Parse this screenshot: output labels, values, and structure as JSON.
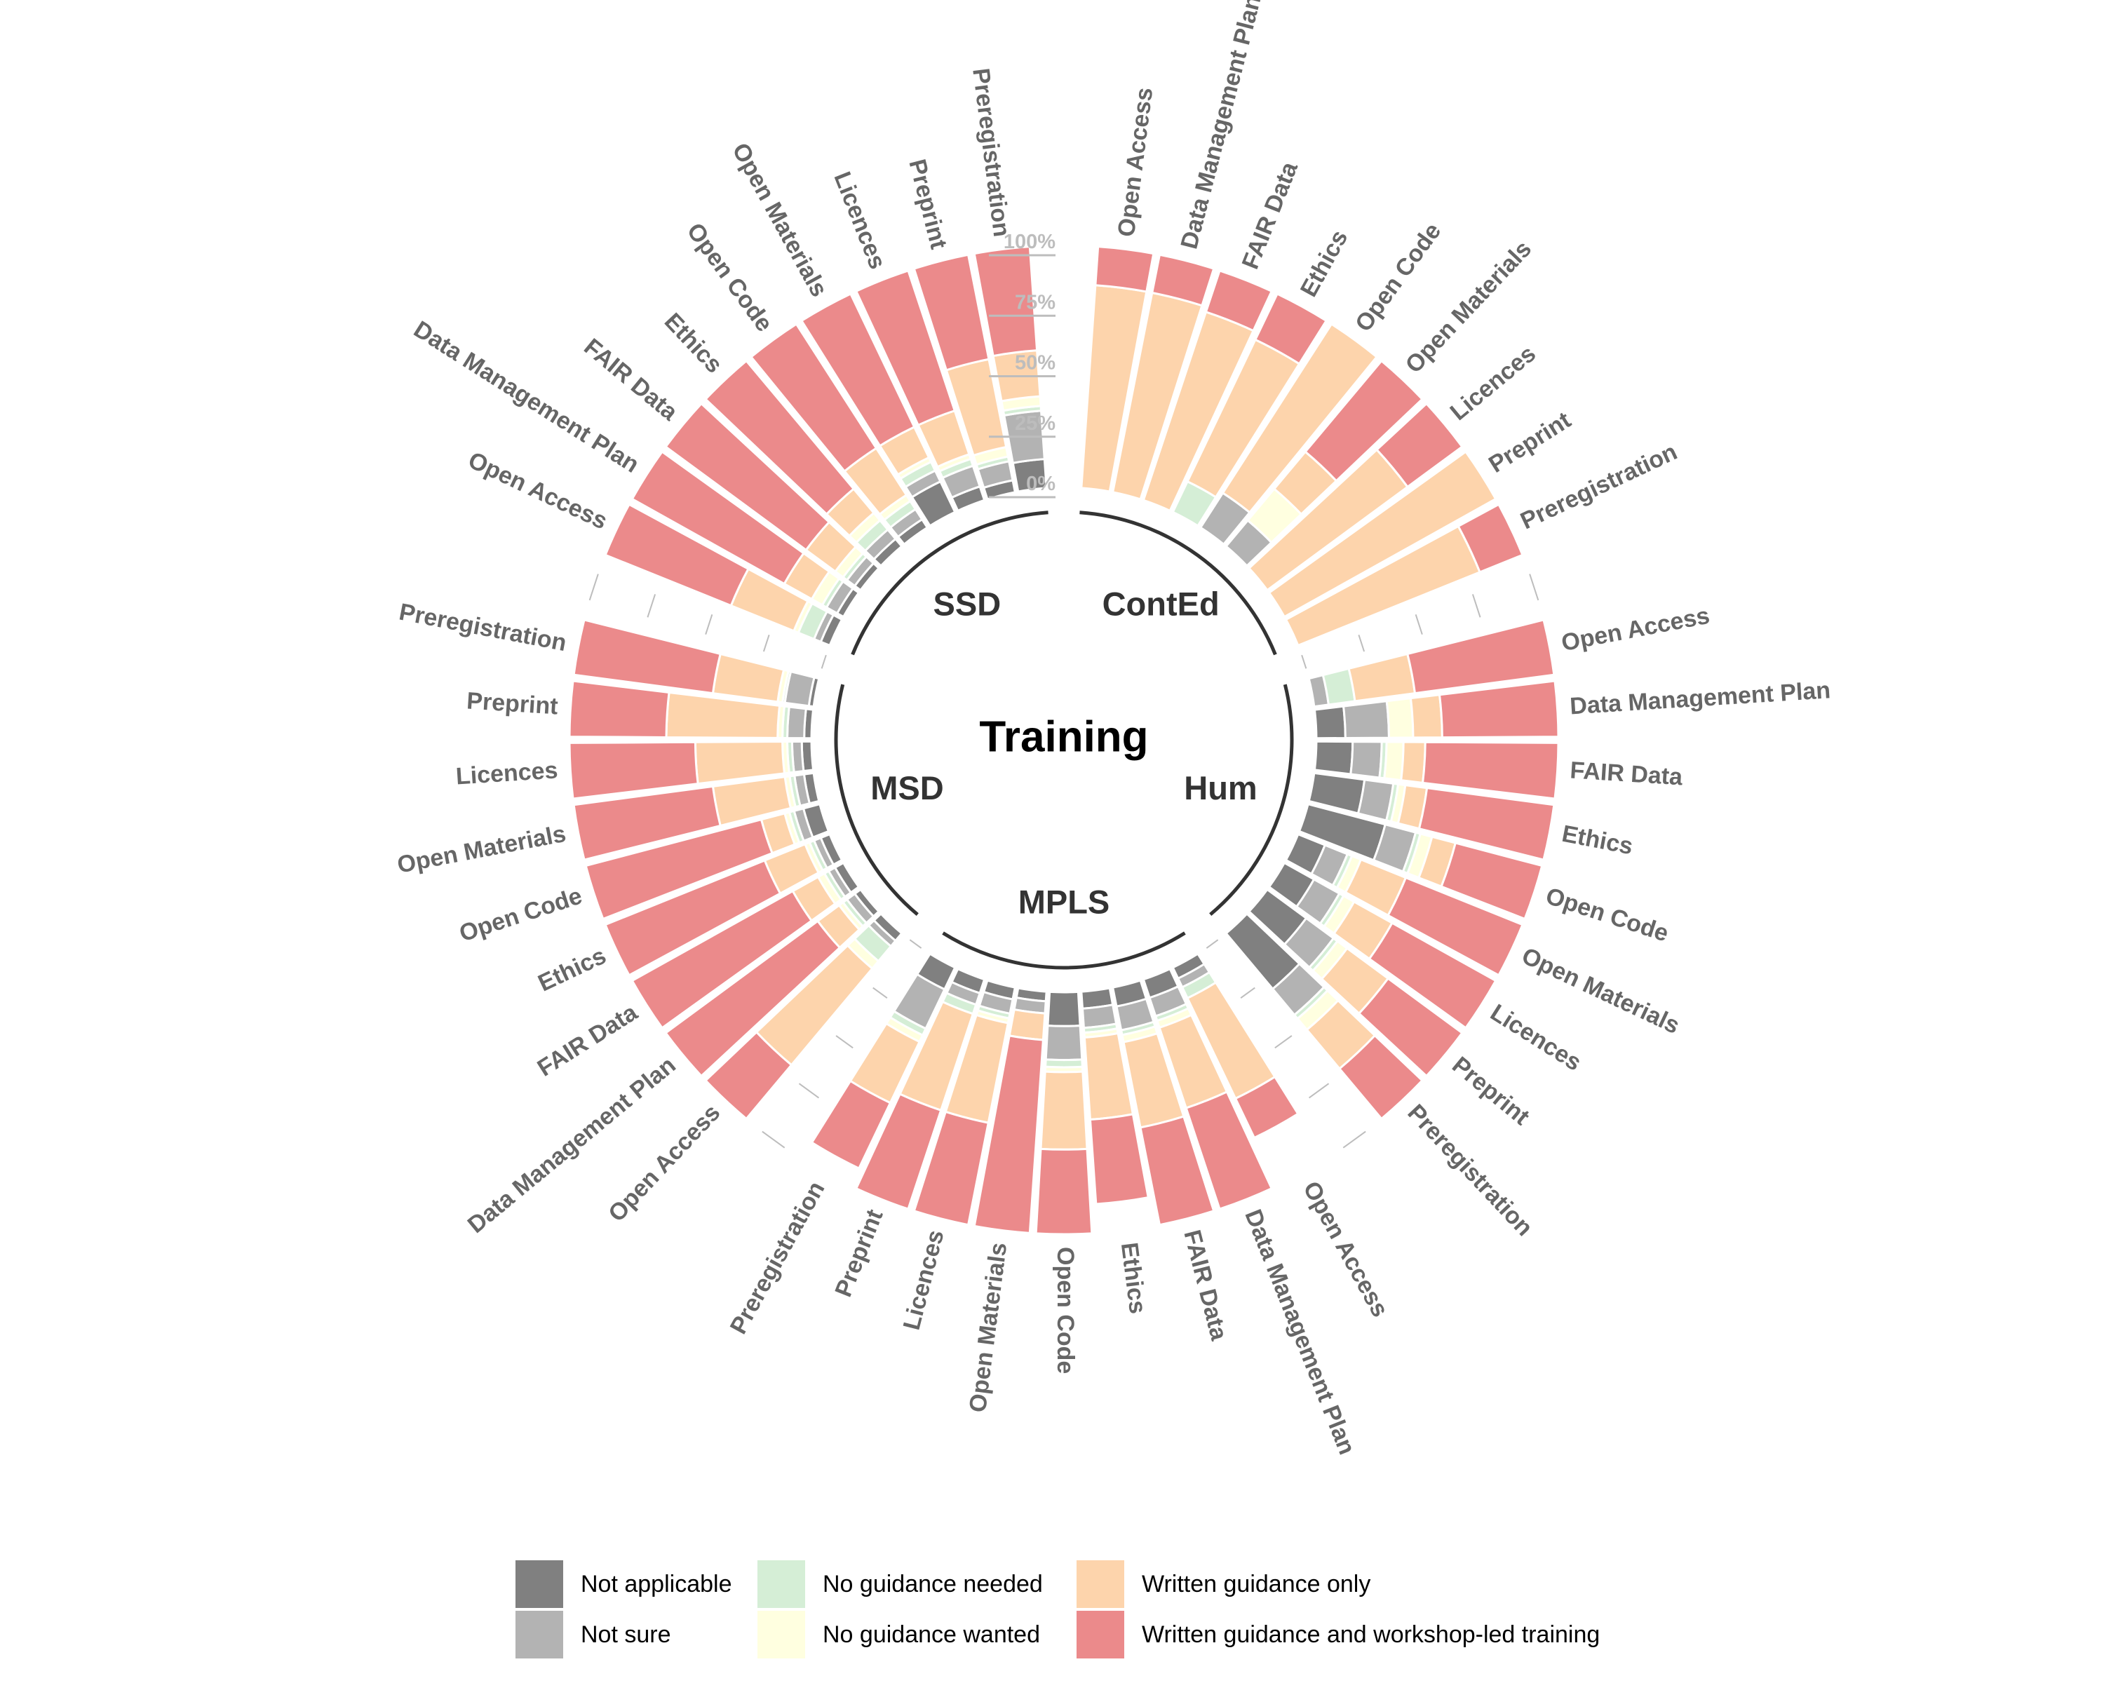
{
  "chart_data": {
    "type": "circular-stacked-bar",
    "title": "Training",
    "yticks": [
      "0%",
      "25%",
      "50%",
      "75%",
      "100%"
    ],
    "legend": [
      {
        "key": "na",
        "label": "Not applicable",
        "color": "#808080"
      },
      {
        "key": "ns",
        "label": "Not sure",
        "color": "#b3b3b3"
      },
      {
        "key": "ngn",
        "label": "No guidance needed",
        "color": "#d5eed6"
      },
      {
        "key": "ngw",
        "label": "No guidance wanted",
        "color": "#ffffe0"
      },
      {
        "key": "wgo",
        "label": "Written guidance only",
        "color": "#fdd4ac"
      },
      {
        "key": "wgt",
        "label": "Written guidance and workshop-led training",
        "color": "#eb8a8b"
      }
    ],
    "categories": [
      "Open Access",
      "Data Management Plan",
      "FAIR Data",
      "Ethics",
      "Open Code",
      "Open Materials",
      "Licences",
      "Preprint",
      "Preregistration"
    ],
    "groups": [
      {
        "name": "ContEd",
        "bars": [
          {
            "na": 0,
            "ns": 0,
            "ngn": 0,
            "ngw": 0,
            "wgo": 0.84,
            "wgt": 0.16
          },
          {
            "na": 0,
            "ns": 0,
            "ngn": 0,
            "ngw": 0,
            "wgo": 0.84,
            "wgt": 0.16
          },
          {
            "na": 0,
            "ns": 0,
            "ngn": 0,
            "ngw": 0,
            "wgo": 0.82,
            "wgt": 0.18
          },
          {
            "na": 0,
            "ns": 0,
            "ngn": 0.14,
            "ngw": 0,
            "wgo": 0.65,
            "wgt": 0.21
          },
          {
            "na": 0,
            "ns": 0.17,
            "ngn": 0,
            "ngw": 0,
            "wgo": 0.83,
            "wgt": 0
          },
          {
            "na": 0,
            "ns": 0.14,
            "ngn": 0,
            "ngw": 0.17,
            "wgo": 0.2,
            "wgt": 0.49
          },
          {
            "na": 0,
            "ns": 0,
            "ngn": 0,
            "ngw": 0,
            "wgo": 0.72,
            "wgt": 0.28
          },
          {
            "na": 0,
            "ns": 0,
            "ngn": 0,
            "ngw": 0,
            "wgo": 1,
            "wgt": 0
          },
          {
            "na": 0,
            "ns": 0,
            "ngn": 0,
            "ngw": 0,
            "wgo": 0.81,
            "wgt": 0.19
          }
        ]
      },
      {
        "name": "Hum",
        "bars": [
          {
            "na": 0,
            "ns": 0.06,
            "ngn": 0.11,
            "ngw": 0,
            "wgo": 0.25,
            "wgt": 0.58
          },
          {
            "na": 0.12,
            "ns": 0.18,
            "ngn": 0,
            "ngw": 0.1,
            "wgo": 0.12,
            "wgt": 0.48
          },
          {
            "na": 0.15,
            "ns": 0.12,
            "ngn": 0.02,
            "ngw": 0.07,
            "wgo": 0.09,
            "wgt": 0.55
          },
          {
            "na": 0.21,
            "ns": 0.12,
            "ngn": 0.02,
            "ngw": 0.03,
            "wgo": 0.09,
            "wgt": 0.53
          },
          {
            "na": 0.33,
            "ns": 0.13,
            "ngn": 0.02,
            "ngw": 0.05,
            "wgo": 0.1,
            "wgt": 0.37
          },
          {
            "na": 0.12,
            "ns": 0.1,
            "ngn": 0.02,
            "ngw": 0.04,
            "wgo": 0.2,
            "wgt": 0.52
          },
          {
            "na": 0.14,
            "ns": 0.12,
            "ngn": 0.02,
            "ngw": 0.05,
            "wgo": 0.18,
            "wgt": 0.49
          },
          {
            "na": 0.2,
            "ns": 0.14,
            "ngn": 0.02,
            "ngw": 0.05,
            "wgo": 0.21,
            "wgt": 0.38
          },
          {
            "na": 0.3,
            "ns": 0.14,
            "ngn": 0.02,
            "ngw": 0.06,
            "wgo": 0.21,
            "wgt": 0.27
          }
        ]
      },
      {
        "name": "MPLS",
        "bars": [
          {
            "na": 0.05,
            "ns": 0.04,
            "ngn": 0.05,
            "ngw": 0,
            "wgo": 0.46,
            "wgt": 0.18
          },
          {
            "na": 0.08,
            "ns": 0.08,
            "ngn": 0.02,
            "ngw": 0.03,
            "wgo": 0.35,
            "wgt": 0.44
          },
          {
            "na": 0.08,
            "ns": 0.1,
            "ngn": 0.02,
            "ngw": 0.03,
            "wgo": 0.36,
            "wgt": 0.41
          },
          {
            "na": 0.07,
            "ns": 0.08,
            "ngn": 0.02,
            "ngw": 0.02,
            "wgo": 0.34,
            "wgt": 0.35
          },
          {
            "na": 0.14,
            "ns": 0.14,
            "ngn": 0.03,
            "ngw": 0.02,
            "wgo": 0.32,
            "wgt": 0.35
          },
          {
            "na": 0.04,
            "ns": 0.05,
            "ngn": 0,
            "ngw": 0,
            "wgo": 0.11,
            "wgt": 0.8
          },
          {
            "na": 0.05,
            "ns": 0.06,
            "ngn": 0.02,
            "ngw": 0.02,
            "wgo": 0.42,
            "wgt": 0.43
          },
          {
            "na": 0.06,
            "ns": 0.05,
            "ngn": 0.04,
            "ngw": 0,
            "wgo": 0.42,
            "wgt": 0.43
          },
          {
            "na": 0.1,
            "ns": 0.18,
            "ngn": 0.03,
            "ngw": 0.03,
            "wgo": 0.28,
            "wgt": 0.3
          }
        ]
      },
      {
        "name": "MSD",
        "bars": [
          {
            "na": 0.04,
            "ns": 0.03,
            "ngn": 0.08,
            "ngw": 0.04,
            "wgo": 0.52,
            "wgt": 0.29
          },
          {
            "na": 0.03,
            "ns": 0.04,
            "ngn": 0.02,
            "ngw": 0.02,
            "wgo": 0.11,
            "wgt": 0.78
          },
          {
            "na": 0.04,
            "ns": 0.03,
            "ngn": 0.02,
            "ngw": 0.03,
            "wgo": 0.12,
            "wgt": 0.76
          },
          {
            "na": 0.04,
            "ns": 0.03,
            "ngn": 0.02,
            "ngw": 0.02,
            "wgo": 0.18,
            "wgt": 0.71
          },
          {
            "na": 0.07,
            "ns": 0.04,
            "ngn": 0.02,
            "ngw": 0.02,
            "wgo": 0.1,
            "wgt": 0.75
          },
          {
            "na": 0.04,
            "ns": 0.04,
            "ngn": 0.02,
            "ngw": 0.02,
            "wgo": 0.3,
            "wgt": 0.58
          },
          {
            "na": 0.04,
            "ns": 0.04,
            "ngn": 0.02,
            "ngw": 0.02,
            "wgo": 0.36,
            "wgt": 0.52
          },
          {
            "na": 0.03,
            "ns": 0.07,
            "ngn": 0.02,
            "ngw": 0.02,
            "wgo": 0.46,
            "wgt": 0.4
          },
          {
            "na": 0.02,
            "ns": 0.1,
            "ngn": 0.01,
            "ngw": 0.02,
            "wgo": 0.27,
            "wgt": 0.58
          }
        ]
      },
      {
        "name": "SSD",
        "bars": [
          {
            "na": 0.04,
            "ns": 0.03,
            "ngn": 0.07,
            "ngw": 0.02,
            "wgo": 0.28,
            "wgt": 0.56
          },
          {
            "na": 0.03,
            "ns": 0.05,
            "ngn": 0.02,
            "ngw": 0.05,
            "wgo": 0.13,
            "wgt": 0.72
          },
          {
            "na": 0.03,
            "ns": 0.04,
            "ngn": 0.02,
            "ngw": 0.04,
            "wgo": 0.15,
            "wgt": 0.72
          },
          {
            "na": 0.04,
            "ns": 0.05,
            "ngn": 0.05,
            "ngw": 0.04,
            "wgo": 0.13,
            "wgt": 0.69
          },
          {
            "na": 0.04,
            "ns": 0.05,
            "ngn": 0.04,
            "ngw": 0.03,
            "wgo": 0.23,
            "wgt": 0.61
          },
          {
            "na": 0.14,
            "ns": 0.05,
            "ngn": 0.04,
            "ngw": 0.02,
            "wgo": 0.14,
            "wgt": 0.61
          },
          {
            "na": 0.06,
            "ns": 0.09,
            "ngn": 0.03,
            "ngw": 0.02,
            "wgo": 0.19,
            "wgt": 0.61
          },
          {
            "na": 0.05,
            "ns": 0.08,
            "ngn": 0.02,
            "ngw": 0.04,
            "wgo": 0.37,
            "wgt": 0.44
          },
          {
            "na": 0.12,
            "ns": 0.2,
            "ngn": 0.02,
            "ngw": 0.04,
            "wgo": 0.19,
            "wgt": 0.43
          }
        ]
      }
    ],
    "legend_placement": "bottom",
    "grid": false
  }
}
